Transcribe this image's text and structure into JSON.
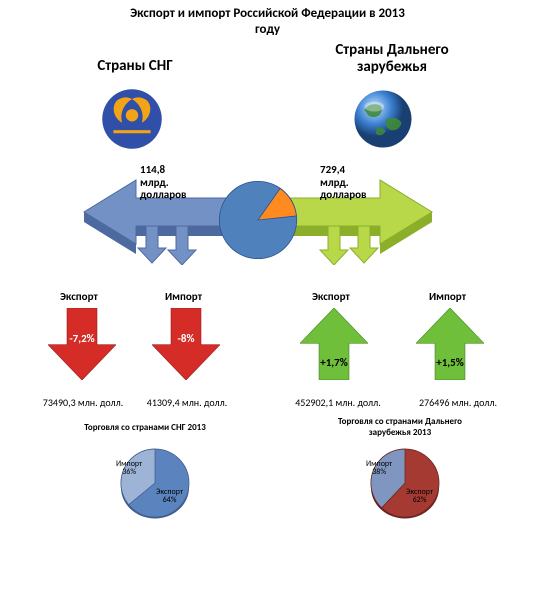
{
  "title_line1": "Экспорт и импорт Российской Федерации в 2013",
  "title_line2": "году",
  "left": {
    "heading": "Страны СНГ",
    "total_value": "114,8",
    "total_unit1": "млрд.",
    "total_unit2": "долларов",
    "export_label": "Экспорт",
    "import_label": "Импорт",
    "export_pct": "-7,2%",
    "import_pct": "-8%",
    "export_value": "73490,3  млн. долл.",
    "import_value": "41309,4  млн. долл.",
    "mini_title": "Торговля со странами СНГ 2013",
    "mini_pie": {
      "import_label": "Импорт",
      "import_pct": "36%",
      "export_label": "Экспорт",
      "export_pct": "64%",
      "import_deg": 129.6,
      "colors": {
        "export": "#5b83bd",
        "import": "#9db4d6",
        "border": "#3f5e8c"
      }
    }
  },
  "right": {
    "heading_l1": "Страны Дальнего",
    "heading_l2": "зарубежья",
    "total_value": "729,4",
    "total_unit1": "млрд.",
    "total_unit2": "долларов",
    "export_label": "Экспорт",
    "import_label": "Импорт",
    "export_pct": "+1,7%",
    "import_pct": "+1,5%",
    "export_value": "452902,1  млн. долл.",
    "import_value": "276496  млн. долл.",
    "mini_title_l1": "Торговля со странами Дальнего",
    "mini_title_l2": "зарубежья 2013",
    "mini_pie": {
      "import_label": "Импорт",
      "import_pct": "38%",
      "export_label": "Экспорт",
      "export_pct": "62%",
      "import_deg": 136.8,
      "colors": {
        "export": "#a43a32",
        "import": "#7f97c0",
        "border": "#6a2520"
      }
    }
  },
  "main_pie": {
    "cis_deg": 48.97,
    "colors": {
      "cis": "#ff8a1f",
      "far": "#4f81bd",
      "border": "#2f528f"
    }
  },
  "colors": {
    "bg": "#ffffff",
    "red": "#d62c27",
    "red_dark": "#9a1f1b",
    "green": "#6fbf3a",
    "green_dark": "#4c8a26",
    "blue_arrow": "#7391c4",
    "blue_arrow_dark": "#4c6aa0",
    "lime_arrow": "#b8d84a",
    "lime_arrow_dark": "#8caf2a",
    "cis_blue": "#2f4fa8",
    "cis_gold": "#f2a316"
  }
}
